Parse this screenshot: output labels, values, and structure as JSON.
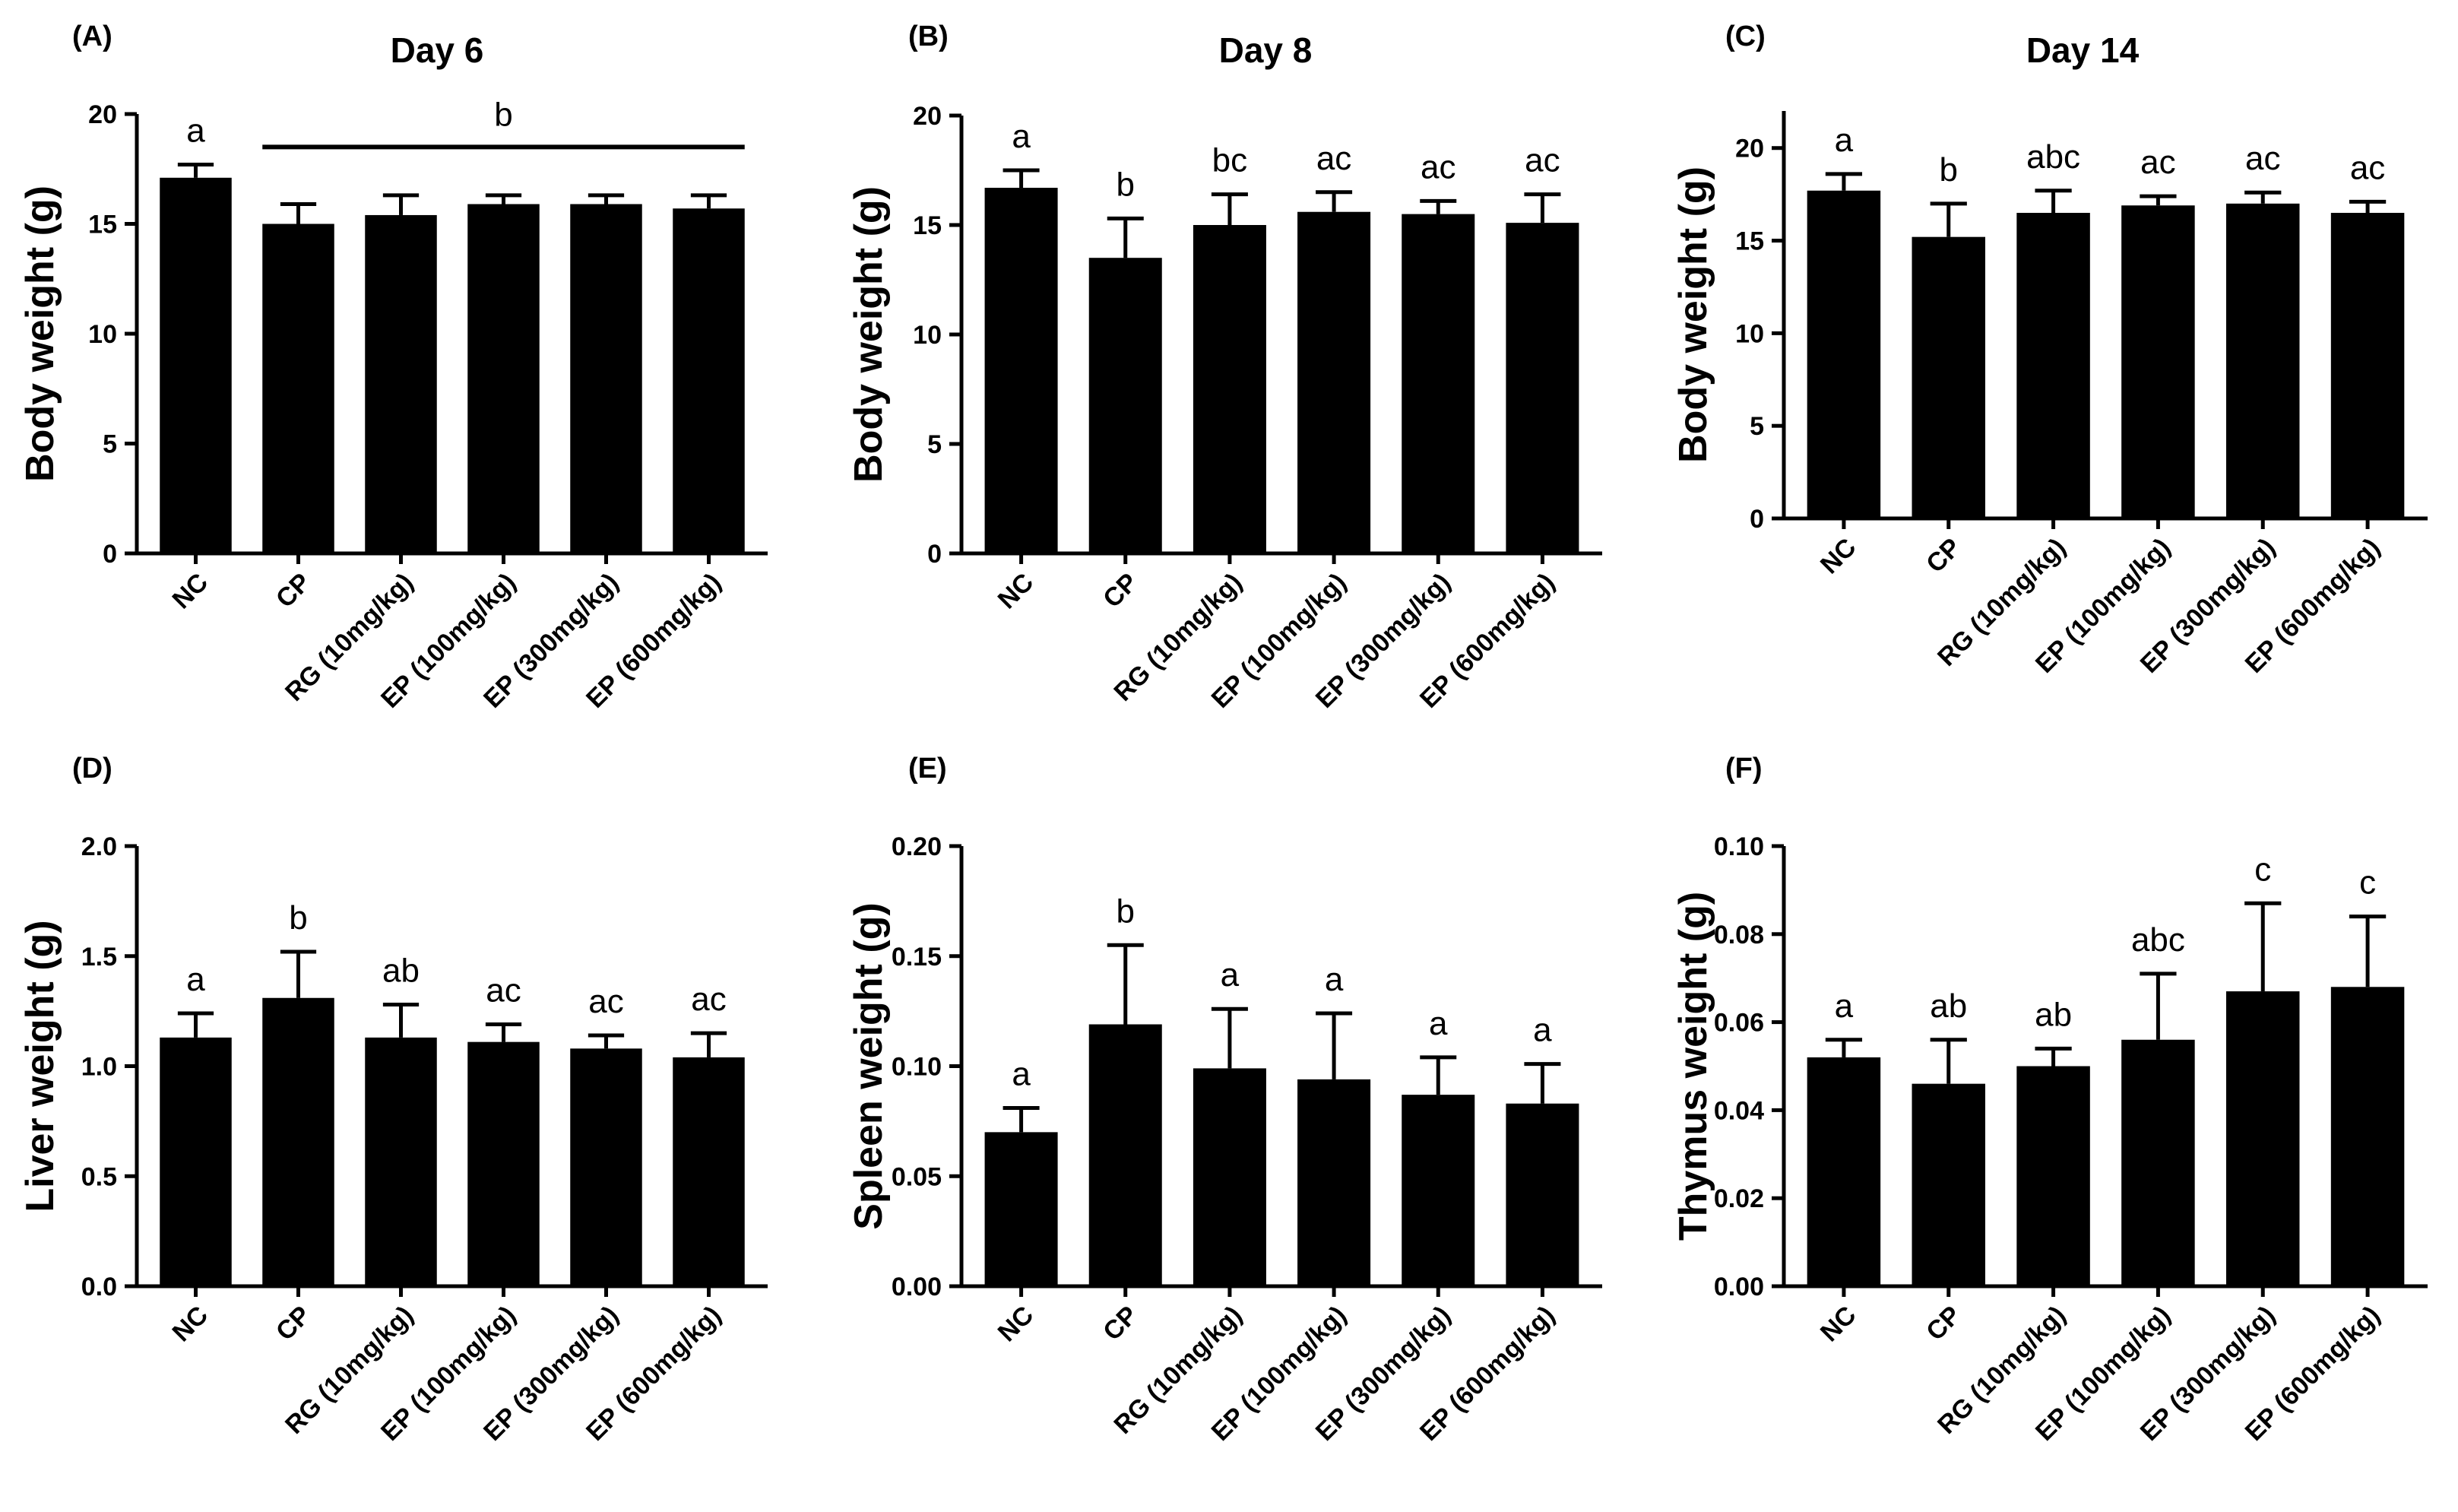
{
  "colors": {
    "bar": "#000000",
    "axis": "#000000",
    "background": "#ffffff"
  },
  "chart_data": [
    {
      "id": "A",
      "panel_label": "(A)",
      "type": "bar",
      "title": "Day 6",
      "ylabel": "Body weight (g)",
      "ylim": [
        0,
        20
      ],
      "yticks": [
        0,
        5,
        10,
        15,
        20
      ],
      "ytick_labels": [
        "0",
        "5",
        "10",
        "15",
        "20"
      ],
      "categories": [
        "NC",
        "CP",
        "RG (10mg/kg)",
        "EP (100mg/kg)",
        "EP (300mg/kg)",
        "EP (600mg/kg)"
      ],
      "values": [
        17.1,
        15.0,
        15.4,
        15.9,
        15.9,
        15.7
      ],
      "errors": [
        0.6,
        0.9,
        0.9,
        0.4,
        0.4,
        0.6
      ],
      "letters": [
        "a",
        "",
        "",
        "",
        "",
        ""
      ],
      "group_annotation": {
        "label": "b",
        "from": 1,
        "to": 5
      }
    },
    {
      "id": "B",
      "panel_label": "(B)",
      "type": "bar",
      "title": "Day 8",
      "ylabel": "Body weight (g)",
      "ylim": [
        0,
        20
      ],
      "yticks": [
        0,
        5,
        10,
        15,
        20
      ],
      "ytick_labels": [
        "0",
        "5",
        "10",
        "15",
        "20"
      ],
      "categories": [
        "NC",
        "CP",
        "RG (10mg/kg)",
        "EP (100mg/kg)",
        "EP (300mg/kg)",
        "EP (600mg/kg)"
      ],
      "values": [
        16.7,
        13.5,
        15.0,
        15.6,
        15.5,
        15.1
      ],
      "errors": [
        0.8,
        1.8,
        1.4,
        0.9,
        0.6,
        1.3
      ],
      "letters": [
        "a",
        "b",
        "bc",
        "ac",
        "ac",
        "ac"
      ]
    },
    {
      "id": "C",
      "panel_label": "(C)",
      "type": "bar",
      "title": "Day 14",
      "ylabel": "Body weight (g)",
      "ylim": [
        0,
        22
      ],
      "yticks": [
        0,
        5,
        10,
        15,
        20
      ],
      "ytick_labels": [
        "0",
        "5",
        "10",
        "15",
        "20"
      ],
      "categories": [
        "NC",
        "CP",
        "RG (10mg/kg)",
        "EP (100mg/kg)",
        "EP (300mg/kg)",
        "EP (600mg/kg)"
      ],
      "values": [
        17.7,
        15.2,
        16.5,
        16.9,
        17.0,
        16.5
      ],
      "errors": [
        0.9,
        1.8,
        1.2,
        0.5,
        0.6,
        0.6
      ],
      "letters": [
        "a",
        "b",
        "abc",
        "ac",
        "ac",
        "ac"
      ]
    },
    {
      "id": "D",
      "panel_label": "(D)",
      "type": "bar",
      "title": "",
      "ylabel": "Liver weight (g)",
      "ylim": [
        0,
        2.0
      ],
      "yticks": [
        0,
        0.5,
        1.0,
        1.5,
        2.0
      ],
      "ytick_labels": [
        "0.0",
        "0.5",
        "1.0",
        "1.5",
        "2.0"
      ],
      "categories": [
        "NC",
        "CP",
        "RG (10mg/kg)",
        "EP (100mg/kg)",
        "EP (300mg/kg)",
        "EP (600mg/kg)"
      ],
      "values": [
        1.13,
        1.31,
        1.13,
        1.11,
        1.08,
        1.04
      ],
      "errors": [
        0.11,
        0.21,
        0.15,
        0.08,
        0.06,
        0.11
      ],
      "letters": [
        "a",
        "b",
        "ab",
        "ac",
        "ac",
        "ac"
      ]
    },
    {
      "id": "E",
      "panel_label": "(E)",
      "type": "bar",
      "title": "",
      "ylabel": "Spleen weight (g)",
      "ylim": [
        0,
        0.2
      ],
      "yticks": [
        0,
        0.05,
        0.1,
        0.15,
        0.2
      ],
      "ytick_labels": [
        "0.00",
        "0.05",
        "0.10",
        "0.15",
        "0.20"
      ],
      "categories": [
        "NC",
        "CP",
        "RG (10mg/kg)",
        "EP (100mg/kg)",
        "EP (300mg/kg)",
        "EP (600mg/kg)"
      ],
      "values": [
        0.07,
        0.119,
        0.099,
        0.094,
        0.087,
        0.083
      ],
      "errors": [
        0.011,
        0.036,
        0.027,
        0.03,
        0.017,
        0.018
      ],
      "letters": [
        "a",
        "b",
        "a",
        "a",
        "a",
        "a"
      ]
    },
    {
      "id": "F",
      "panel_label": "(F)",
      "type": "bar",
      "title": "",
      "ylabel": "Thymus weight (g)",
      "ylim": [
        0,
        0.1
      ],
      "yticks": [
        0,
        0.02,
        0.04,
        0.06,
        0.08,
        0.1
      ],
      "ytick_labels": [
        "0.00",
        "0.02",
        "0.04",
        "0.06",
        "0.08",
        "0.10"
      ],
      "categories": [
        "NC",
        "CP",
        "RG (10mg/kg)",
        "EP (100mg/kg)",
        "EP (300mg/kg)",
        "EP (600mg/kg)"
      ],
      "values": [
        0.052,
        0.046,
        0.05,
        0.056,
        0.067,
        0.068
      ],
      "errors": [
        0.004,
        0.01,
        0.004,
        0.015,
        0.02,
        0.016
      ],
      "letters": [
        "a",
        "ab",
        "ab",
        "abc",
        "c",
        "c"
      ]
    }
  ]
}
